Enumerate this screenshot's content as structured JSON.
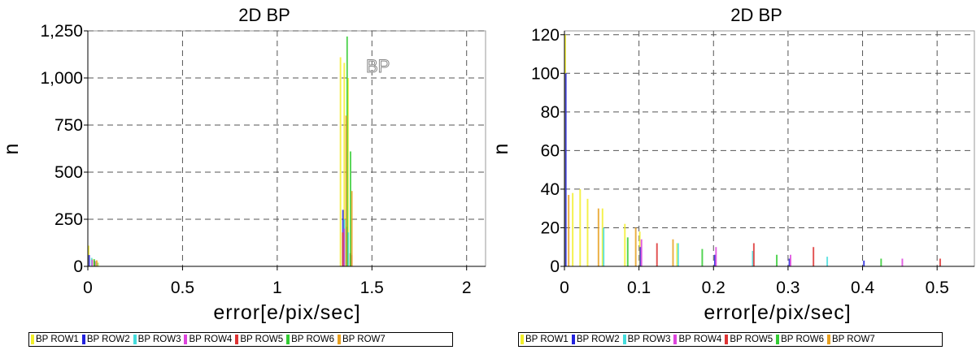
{
  "chart_data": [
    {
      "type": "bar",
      "title": "2D BP",
      "xlabel": "error[e/pix/sec]",
      "ylabel": "n",
      "xlim": [
        0,
        2.1
      ],
      "ylim": [
        0,
        1250
      ],
      "x_ticks": [
        "0",
        "0.5",
        "1",
        "1.5",
        "2"
      ],
      "x_tick_values": [
        0,
        0.5,
        1,
        1.5,
        2
      ],
      "y_ticks": [
        "0",
        "250",
        "500",
        "750",
        "1,000",
        "1,250"
      ],
      "y_tick_values": [
        0,
        250,
        500,
        750,
        1000,
        1250
      ],
      "grid": true,
      "annotation": "BP",
      "series": [
        {
          "name": "BP ROW1",
          "color": "#f2ef2a",
          "x": [
            0.0,
            0.02,
            0.05,
            1.33,
            1.35,
            1.37
          ],
          "values": [
            110,
            40,
            20,
            1110,
            1080,
            1000
          ]
        },
        {
          "name": "BP ROW2",
          "color": "#2222dd",
          "x": [
            0.0,
            0.03,
            1.34,
            1.36
          ],
          "values": [
            60,
            25,
            300,
            210
          ]
        },
        {
          "name": "BP ROW3",
          "color": "#44dddd",
          "x": [
            0.01,
            0.04,
            1.345,
            1.365
          ],
          "values": [
            45,
            18,
            250,
            180
          ]
        },
        {
          "name": "BP ROW4",
          "color": "#dd44dd",
          "x": [
            0.01,
            1.34,
            1.38
          ],
          "values": [
            35,
            200,
            60
          ]
        },
        {
          "name": "BP ROW5",
          "color": "#dd3333",
          "x": [
            0.02,
            1.33,
            1.37
          ],
          "values": [
            30,
            180,
            70
          ]
        },
        {
          "name": "BP ROW6",
          "color": "#33cc33",
          "x": [
            0.015,
            1.35,
            1.368
          ],
          "values": [
            38,
            1220,
            610
          ]
        },
        {
          "name": "BP ROW7",
          "color": "#e8a020",
          "x": [
            0.025,
            1.342,
            1.372
          ],
          "values": [
            32,
            800,
            400
          ]
        }
      ]
    },
    {
      "type": "bar",
      "title": "2D BP",
      "xlabel": "error[e/pix/sec]",
      "ylabel": "n",
      "xlim": [
        0,
        0.55
      ],
      "ylim": [
        0,
        122
      ],
      "x_ticks": [
        "0",
        "0.1",
        "0.2",
        "0.3",
        "0.4",
        "0.5"
      ],
      "x_tick_values": [
        0,
        0.1,
        0.2,
        0.3,
        0.4,
        0.5
      ],
      "y_ticks": [
        "0",
        "20",
        "40",
        "60",
        "80",
        "100",
        "120"
      ],
      "y_tick_values": [
        0,
        20,
        40,
        60,
        80,
        100,
        120
      ],
      "grid": true,
      "series": [
        {
          "name": "BP ROW1",
          "color": "#f2ef2a",
          "x": [
            0.0,
            0.01,
            0.02,
            0.03,
            0.05,
            0.08,
            0.1,
            0.15
          ],
          "values": [
            120,
            38,
            40,
            35,
            30,
            22,
            18,
            12
          ]
        },
        {
          "name": "BP ROW2",
          "color": "#2222dd",
          "x": [
            0.0,
            0.1,
            0.2,
            0.3,
            0.4
          ],
          "values": [
            100,
            10,
            6,
            4,
            3
          ]
        },
        {
          "name": "BP ROW3",
          "color": "#44dddd",
          "x": [
            0.05,
            0.15,
            0.25,
            0.35
          ],
          "values": [
            20,
            12,
            8,
            5
          ]
        },
        {
          "name": "BP ROW4",
          "color": "#dd44dd",
          "x": [
            0.1,
            0.2,
            0.3,
            0.45
          ],
          "values": [
            14,
            10,
            6,
            4
          ]
        },
        {
          "name": "BP ROW5",
          "color": "#dd3333",
          "x": [
            0.12,
            0.25,
            0.33,
            0.5
          ],
          "values": [
            12,
            12,
            10,
            4
          ]
        },
        {
          "name": "BP ROW6",
          "color": "#33cc33",
          "x": [
            0.08,
            0.18,
            0.28,
            0.42
          ],
          "values": [
            15,
            9,
            6,
            4
          ]
        },
        {
          "name": "BP ROW7",
          "color": "#e8a020",
          "x": [
            0.0,
            0.04,
            0.09,
            0.14
          ],
          "values": [
            37,
            30,
            20,
            14
          ]
        }
      ]
    }
  ],
  "legend_items": [
    "BP ROW1",
    "BP ROW2",
    "BP ROW3",
    "BP ROW4",
    "BP ROW5",
    "BP ROW6",
    "BP ROW7"
  ]
}
